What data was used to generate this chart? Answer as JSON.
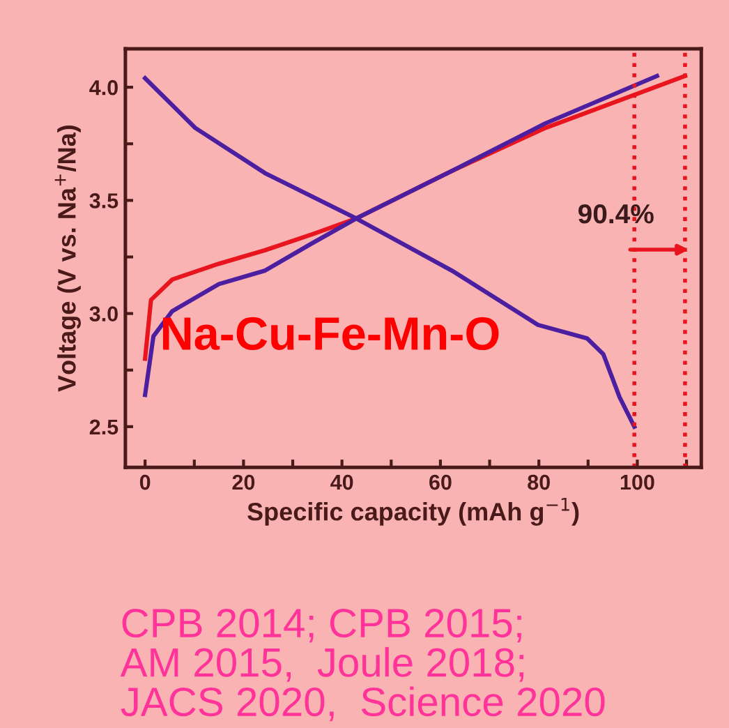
{
  "chart_data": {
    "type": "line",
    "xlabel": "Specific capacity (mAh g$^{−1}$)",
    "ylabel": "Voltage (V vs. Na$^{+}$/Na)",
    "series": [
      {
        "color": "#e8141e",
        "x": [
          0,
          1.2,
          5.5,
          15,
          24.4,
          33.9,
          42.9,
          62.3,
          81.3,
          109.7
        ],
        "values": [
          2.8,
          3.06,
          3.15,
          3.22,
          3.28,
          3.35,
          3.42,
          3.63,
          3.82,
          4.05
        ]
      },
      {
        "color": "#4b1fa0",
        "x": [
          0,
          10.2,
          24.4,
          42.9,
          62.3,
          79.8,
          89.8,
          93.1,
          96.4,
          99.4
        ],
        "values": [
          4.04,
          3.82,
          3.62,
          3.42,
          3.19,
          2.95,
          2.89,
          2.82,
          2.63,
          2.5
        ]
      },
      {
        "color": "#4b1fa0",
        "x": [
          0,
          1.7,
          5.5,
          15,
          24.4,
          33.9,
          42.9,
          62.3,
          81.3,
          104
        ],
        "values": [
          2.64,
          2.9,
          3.01,
          3.13,
          3.19,
          3.31,
          3.42,
          3.63,
          3.84,
          4.05
        ]
      }
    ],
    "xlim": [
      -4,
      113
    ],
    "ylim": [
      2.32,
      4.17
    ],
    "xticks": [
      0,
      {
        "value": 10,
        "label": null
      },
      20,
      {
        "value": 30,
        "label": null
      },
      40,
      {
        "value": 50,
        "label": null
      },
      60,
      {
        "value": 70,
        "label": null
      },
      80,
      {
        "value": 90,
        "label": null
      },
      100,
      {
        "value": 110,
        "label": null
      }
    ],
    "yticks": [
      2.5,
      {
        "value": 2.75,
        "label": null
      },
      {
        "value": 3,
        "label": "3.0"
      },
      {
        "value": 3.25,
        "label": null
      },
      3.5,
      {
        "value": 3.75,
        "label": null
      },
      {
        "value": 4,
        "label": "4.0"
      }
    ],
    "ref_lines": [
      {
        "axis": "x",
        "value": 99.4,
        "color": "#e8141e",
        "line_style": "dotted"
      },
      {
        "axis": "x",
        "value": 109.7,
        "color": "#e8141e",
        "line_style": "dotted"
      }
    ],
    "annotations": [
      "90.4%",
      "Na-Cu-Fe-Mn-O",
      "CPB 2014; CPB 2015;\nAM 2015,  Joule 2018;\nJACS 2020,  Science 2020"
    ],
    "grid": false,
    "legend": false
  }
}
